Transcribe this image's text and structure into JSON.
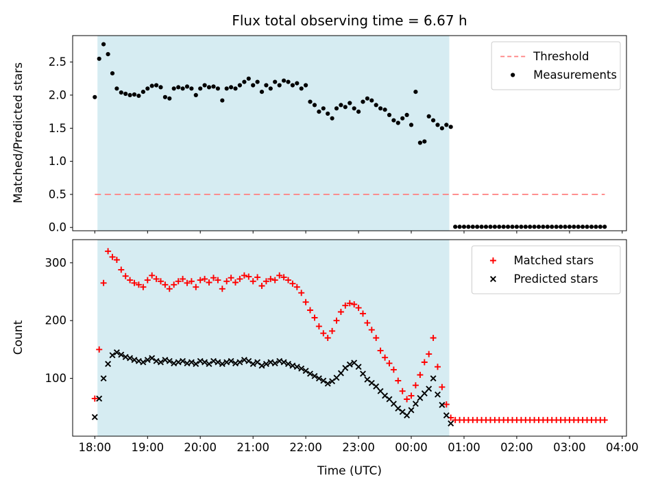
{
  "chart_data": [
    {
      "type": "scatter",
      "title": "Flux total observing time = 6.67 h",
      "ylabel": "Matched/Predicted stars",
      "ylim": [
        -0.05,
        2.9
      ],
      "yticks": [
        0.0,
        0.5,
        1.0,
        1.5,
        2.0,
        2.5
      ],
      "ytick_labels": [
        "0.0",
        "0.5",
        "1.0",
        "1.5",
        "2.0",
        "2.5"
      ],
      "xlim": [
        17.58,
        28.08
      ],
      "grid": false,
      "legend_position": "top-right",
      "shade": {
        "x0": 18.05,
        "x1": 24.72,
        "color": "#d6ecf2"
      },
      "threshold": {
        "y": 0.5,
        "x0": 18.0,
        "x1": 27.67,
        "color": "#ff7f7f",
        "label": "Threshold"
      },
      "legend": [
        {
          "label": "Threshold",
          "marker": "dashed-line",
          "color": "#ff7f7f"
        },
        {
          "label": "Measurements",
          "marker": "dot",
          "color": "#000000"
        }
      ],
      "series": [
        {
          "name": "Measurements",
          "marker": "dot",
          "color": "#000000",
          "x0": 18.0,
          "dx": 0.083333,
          "y": [
            1.97,
            2.55,
            2.77,
            2.62,
            2.33,
            2.1,
            2.04,
            2.02,
            2.0,
            2.01,
            1.99,
            2.05,
            2.1,
            2.14,
            2.15,
            2.12,
            1.97,
            1.95,
            2.1,
            2.12,
            2.1,
            2.13,
            2.1,
            2.0,
            2.1,
            2.15,
            2.12,
            2.13,
            2.1,
            1.92,
            2.1,
            2.12,
            2.1,
            2.15,
            2.2,
            2.25,
            2.15,
            2.2,
            2.05,
            2.15,
            2.1,
            2.2,
            2.15,
            2.22,
            2.2,
            2.15,
            2.18,
            2.1,
            2.15,
            1.9,
            1.85,
            1.75,
            1.8,
            1.72,
            1.65,
            1.8,
            1.85,
            1.82,
            1.88,
            1.8,
            1.75,
            1.9,
            1.95,
            1.92,
            1.85,
            1.8,
            1.78,
            1.7,
            1.62,
            1.58,
            1.65,
            1.7,
            1.55,
            2.05,
            1.28,
            1.3,
            1.68,
            1.62,
            1.55,
            1.5,
            1.55,
            1.52
          ]
        },
        {
          "name": "Measurements zero tail",
          "marker": "dot",
          "color": "#000000",
          "x0": 24.833333,
          "dx": 0.083333,
          "y": [
            0.01,
            0.01,
            0.01,
            0.01,
            0.01,
            0.01,
            0.01,
            0.01,
            0.01,
            0.01,
            0.01,
            0.01,
            0.01,
            0.01,
            0.01,
            0.01,
            0.01,
            0.01,
            0.01,
            0.01,
            0.01,
            0.01,
            0.01,
            0.01,
            0.01,
            0.01,
            0.01,
            0.01,
            0.01,
            0.01,
            0.01,
            0.01,
            0.01,
            0.01,
            0.01
          ]
        }
      ]
    },
    {
      "type": "scatter",
      "ylabel": "Count",
      "xlabel": "Time (UTC)",
      "ylim": [
        0,
        340
      ],
      "yticks": [
        100,
        200,
        300
      ],
      "ytick_labels": [
        "100",
        "200",
        "300"
      ],
      "xlim": [
        17.58,
        28.08
      ],
      "xticks": [
        18,
        19,
        20,
        21,
        22,
        23,
        24,
        25,
        26,
        27,
        28
      ],
      "xtick_labels": [
        "18:00",
        "19:00",
        "20:00",
        "21:00",
        "22:00",
        "23:00",
        "00:00",
        "01:00",
        "02:00",
        "03:00",
        "04:00"
      ],
      "grid": false,
      "legend_position": "top-right",
      "shade": {
        "x0": 18.05,
        "x1": 24.72,
        "color": "#d6ecf2"
      },
      "legend": [
        {
          "label": "Matched stars",
          "marker": "plus",
          "color": "#ff0000"
        },
        {
          "label": "Predicted stars",
          "marker": "x",
          "color": "#000000"
        }
      ],
      "series": [
        {
          "name": "Matched stars",
          "marker": "plus",
          "color": "#ff0000",
          "x0": 18.0,
          "dx": 0.083333,
          "y": [
            65,
            150,
            265,
            320,
            310,
            305,
            288,
            277,
            270,
            265,
            262,
            258,
            270,
            278,
            272,
            268,
            262,
            255,
            262,
            268,
            272,
            265,
            268,
            258,
            270,
            272,
            266,
            274,
            270,
            255,
            268,
            274,
            266,
            272,
            278,
            276,
            268,
            275,
            260,
            268,
            272,
            270,
            278,
            275,
            270,
            264,
            258,
            248,
            232,
            218,
            205,
            190,
            178,
            170,
            182,
            200,
            215,
            226,
            230,
            228,
            222,
            212,
            196,
            184,
            170,
            148,
            136,
            126,
            115,
            96,
            78,
            64,
            70,
            88,
            106,
            128,
            142,
            170,
            120,
            85,
            55,
            32
          ]
        },
        {
          "name": "Matched stars flat tail",
          "marker": "plus",
          "color": "#ff0000",
          "x0": 24.833333,
          "dx": 0.083333,
          "y": [
            28,
            28,
            28,
            28,
            28,
            28,
            28,
            28,
            28,
            28,
            28,
            28,
            28,
            28,
            28,
            28,
            28,
            28,
            28,
            28,
            28,
            28,
            28,
            28,
            28,
            28,
            28,
            28,
            28,
            28,
            28,
            28,
            28,
            28,
            28
          ]
        },
        {
          "name": "Predicted stars",
          "marker": "x",
          "color": "#000000",
          "x0": 18.0,
          "dx": 0.083333,
          "y": [
            33,
            65,
            100,
            125,
            140,
            145,
            141,
            137,
            135,
            132,
            130,
            128,
            132,
            135,
            130,
            128,
            132,
            130,
            126,
            128,
            130,
            126,
            128,
            125,
            130,
            128,
            125,
            130,
            128,
            125,
            128,
            130,
            126,
            128,
            132,
            130,
            125,
            128,
            122,
            125,
            128,
            126,
            130,
            128,
            125,
            122,
            120,
            117,
            113,
            108,
            104,
            100,
            96,
            91,
            95,
            101,
            109,
            118,
            124,
            127,
            120,
            108,
            98,
            92,
            86,
            78,
            70,
            64,
            56,
            48,
            42,
            36,
            45,
            56,
            66,
            74,
            82,
            100,
            72,
            54,
            36,
            22
          ]
        }
      ]
    }
  ]
}
